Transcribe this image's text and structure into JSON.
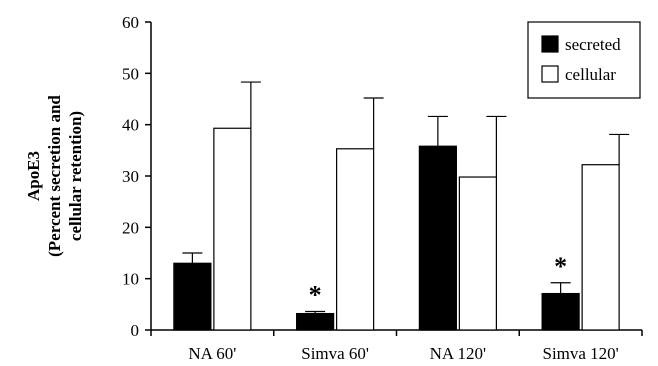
{
  "chart_data": {
    "type": "bar",
    "ylabel": [
      "ApoE3",
      "(Percent secretion and",
      "cellular retention)"
    ],
    "categories": [
      "NA 60'",
      "Simva 60'",
      "NA 120'",
      "Simva 120'"
    ],
    "ylim": [
      0,
      60
    ],
    "yticks": [
      0,
      10,
      20,
      30,
      40,
      50,
      60
    ],
    "grid": false,
    "legend_position": "top-right",
    "series": [
      {
        "name": "secreted",
        "color": "#000000",
        "values": [
          13,
          3.2,
          35.8,
          7.1
        ],
        "errors": [
          2,
          0.4,
          5.8,
          2.1
        ]
      },
      {
        "name": "cellular",
        "color": "#ffffff",
        "values": [
          39.3,
          35.3,
          29.8,
          32.2
        ],
        "errors": [
          9,
          9.9,
          11.8,
          5.9
        ]
      }
    ],
    "annotations": [
      {
        "category_index": 1,
        "series_index": 0,
        "text": "*"
      },
      {
        "category_index": 3,
        "series_index": 0,
        "text": "*"
      }
    ]
  }
}
